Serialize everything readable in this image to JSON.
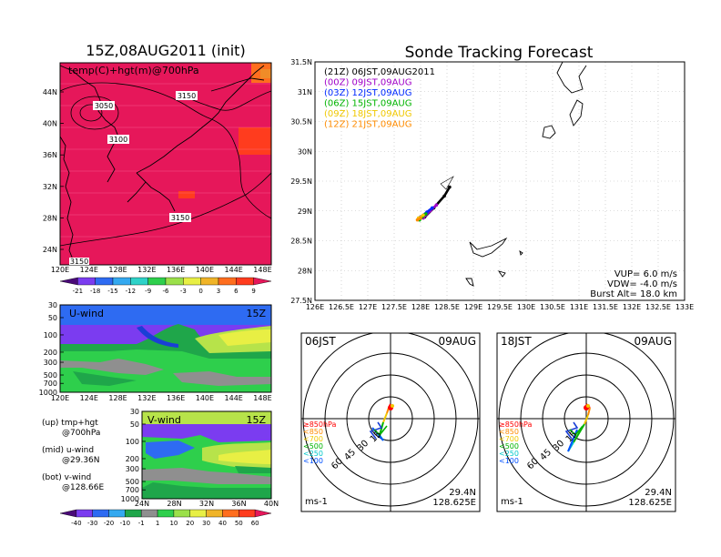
{
  "left": {
    "title": "15Z,08AUG2011 (init)",
    "top_map": {
      "label": "temp(C)+hgt(m)@700hPa",
      "x_ticks": [
        "120E",
        "124E",
        "128E",
        "132E",
        "136E",
        "140E",
        "144E",
        "148E"
      ],
      "y_ticks": [
        "44N",
        "40N",
        "36N",
        "32N",
        "28N",
        "24N"
      ],
      "contour_labels": [
        "3050",
        "3150",
        "3100",
        "3150",
        "3150"
      ],
      "colorbar": [
        "-21",
        "-18",
        "-15",
        "-12",
        "-9",
        "-6",
        "-3",
        "0",
        "3",
        "6",
        "9"
      ]
    },
    "uwind": {
      "label": "U-wind",
      "time": "15Z",
      "y_ticks": [
        "30",
        "50",
        "100",
        "200",
        "300",
        "500",
        "700",
        "1000"
      ],
      "x_ticks": [
        "120E",
        "124E",
        "128E",
        "132E",
        "136E",
        "140E",
        "144E",
        "148E"
      ]
    },
    "vwind": {
      "label": "V-wind",
      "time": "15Z",
      "y_ticks": [
        "30",
        "50",
        "100",
        "200",
        "300",
        "500",
        "700",
        "1000"
      ],
      "x_ticks": [
        "24N",
        "28N",
        "32N",
        "36N",
        "40N"
      ],
      "colorbar": [
        "-40",
        "-30",
        "-20",
        "-10",
        "-1",
        "1",
        "10",
        "20",
        "30",
        "40",
        "50",
        "60"
      ]
    },
    "notes": [
      {
        "a": "(up) tmp+hgt",
        "b": "@700hPa"
      },
      {
        "a": "(mid) u-wind",
        "b": "@29.36N"
      },
      {
        "a": "(bot) v-wind",
        "b": "@128.66E"
      }
    ]
  },
  "right": {
    "title": "Sonde Tracking Forecast",
    "legend": [
      {
        "text": "(21Z) 06JST,09AUG2011",
        "color": "#000000"
      },
      {
        "text": "(00Z) 09JST,09AUG",
        "color": "#a000c8"
      },
      {
        "text": "(03Z) 12JST,09AUG",
        "color": "#0028ff"
      },
      {
        "text": "(06Z) 15JST,09AUG",
        "color": "#00b400"
      },
      {
        "text": "(09Z) 18JST,09AUG",
        "color": "#f0c800"
      },
      {
        "text": "(12Z) 21JST,09AUG",
        "color": "#ff8c00"
      }
    ],
    "params": [
      "VUP= 6.0 m/s",
      "VDW= -4.0 m/s",
      "Burst Alt= 18.0 km"
    ],
    "x_ticks": [
      "126E",
      "126.5E",
      "127E",
      "127.5E",
      "128E",
      "128.5E",
      "129E",
      "129.5E",
      "130E",
      "130.5E",
      "131E",
      "131.5E",
      "132E",
      "132.5E",
      "133E"
    ],
    "y_ticks": [
      "31.5N",
      "31N",
      "30.5N",
      "30N",
      "29.5N",
      "29N",
      "28.5N",
      "28N",
      "27.5N"
    ]
  },
  "chart_data": {
    "type": "line",
    "title": "Sonde Tracking Forecast",
    "xlim": [
      126,
      133
    ],
    "ylim": [
      27.5,
      31.5
    ],
    "series": [
      {
        "name": "(21Z) 06JST,09AUG2011",
        "x": [
          128.08,
          128.25,
          128.45,
          128.55
        ],
        "y": [
          28.9,
          29.05,
          29.25,
          29.4
        ]
      },
      {
        "name": "(00Z) 09JST,09AUG",
        "x": [
          128.05,
          128.18,
          128.3
        ],
        "y": [
          28.88,
          29.0,
          29.1
        ]
      },
      {
        "name": "(03Z) 12JST,09AUG",
        "x": [
          128.0,
          128.12,
          128.22
        ],
        "y": [
          28.9,
          28.98,
          29.05
        ]
      },
      {
        "name": "(06Z) 15JST,09AUG",
        "x": [
          127.98,
          128.1
        ],
        "y": [
          28.85,
          28.95
        ]
      },
      {
        "name": "(09Z) 18JST,09AUG",
        "x": [
          127.96,
          128.05
        ],
        "y": [
          28.88,
          28.93
        ]
      },
      {
        "name": "(12Z) 21JST,09AUG",
        "x": [
          127.94,
          128.0
        ],
        "y": [
          28.85,
          28.88
        ]
      }
    ]
  },
  "polar": [
    {
      "time": "06JST",
      "date": "09AUG",
      "levels": [
        "≥850hPa",
        "<850",
        "<700",
        "<500",
        "<250",
        "<100"
      ],
      "level_colors": [
        "#ff0000",
        "#ff8c00",
        "#f0c800",
        "#00b400",
        "#00c8c8",
        "#0050ff"
      ],
      "rings": [
        "15",
        "30",
        "45",
        "60"
      ],
      "unit": "ms-1",
      "lat": "29.4N",
      "lon": "128.625E"
    },
    {
      "time": "18JST",
      "date": "09AUG",
      "levels": [
        "≥850hPa",
        "<850",
        "<700",
        "<500",
        "<250",
        "<100"
      ],
      "level_colors": [
        "#ff0000",
        "#ff8c00",
        "#f0c800",
        "#00b400",
        "#00c8c8",
        "#0050ff"
      ],
      "rings": [
        "15",
        "30",
        "45",
        "60"
      ],
      "unit": "ms-1",
      "lat": "29.4N",
      "lon": "128.625E"
    }
  ]
}
